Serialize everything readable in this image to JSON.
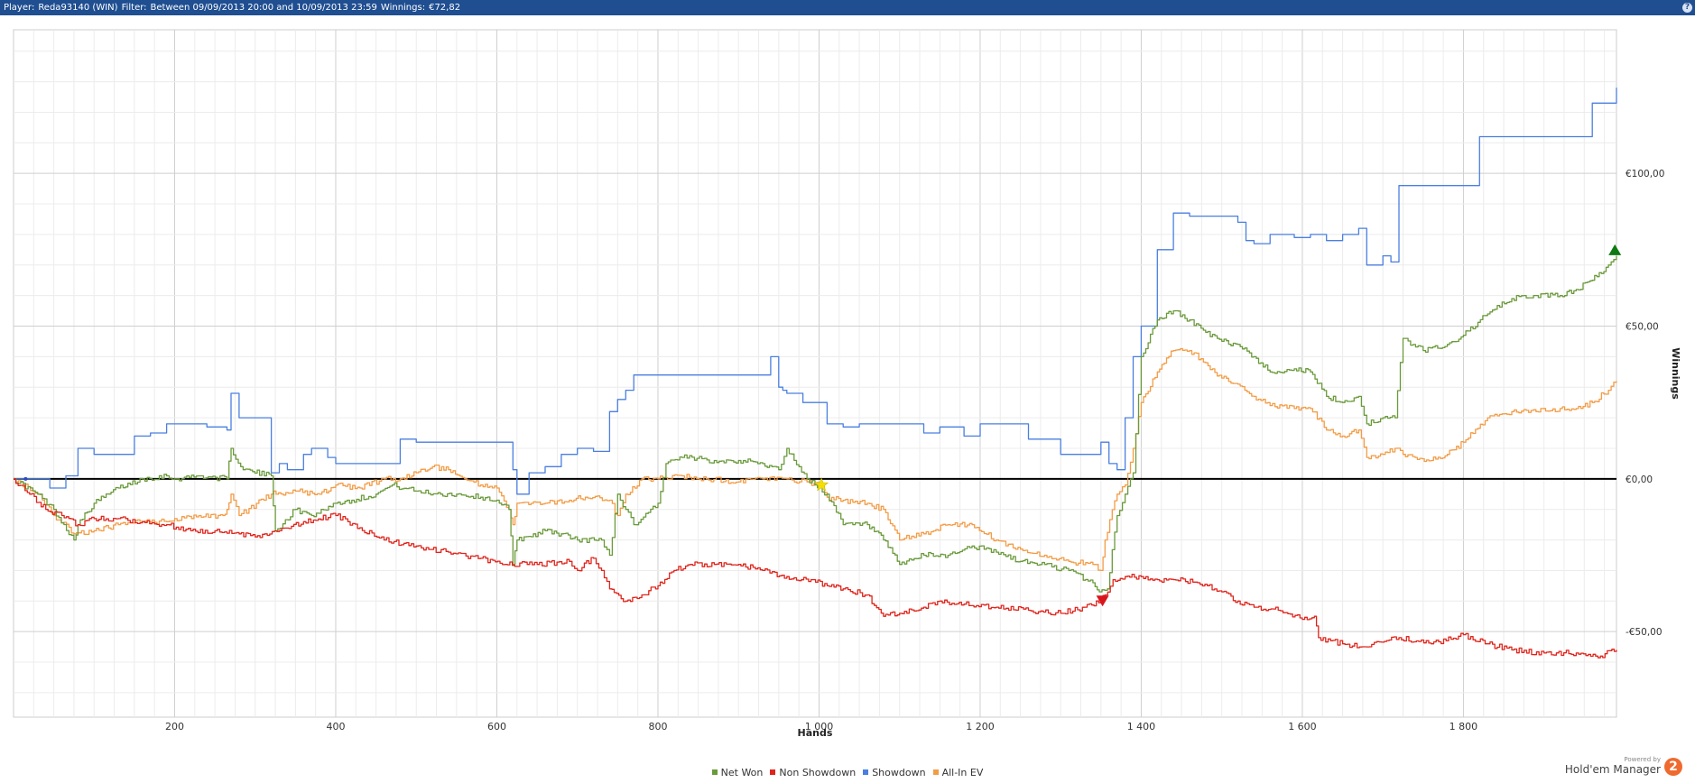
{
  "header": {
    "player_label": "Player:",
    "player_value": "Reda93140 (WIN)",
    "filter_label": "Filter:",
    "filter_value": "Between 09/09/2013 20:00 and 10/09/2013 23:59",
    "winnings_label": "Winnings:",
    "winnings_value": "€72,82",
    "help_label": "?"
  },
  "branding": {
    "powered_by": "Powered by",
    "name": "Hold'em Manager",
    "logo": "2"
  },
  "chart_data": {
    "type": "line",
    "xlabel": "Hands",
    "ylabel": "Winnings",
    "xlim": [
      0,
      1990
    ],
    "ylim": [
      -78,
      147
    ],
    "x_ticks": [
      200,
      400,
      600,
      800,
      1000,
      1200,
      1400,
      1600,
      1800
    ],
    "x_tick_labels": [
      "200",
      "400",
      "600",
      "800",
      "1 000",
      "1 200",
      "1 400",
      "1 600",
      "1 800"
    ],
    "y_ticks": [
      100,
      50,
      0,
      -50
    ],
    "y_tick_labels": [
      "€100,00",
      "€50,00",
      "€0,00",
      "-€50,00"
    ],
    "grid": true,
    "legend_position": "bottom",
    "series": [
      {
        "name": "Net Won",
        "color": "#6a9a3a",
        "x": [
          0,
          30,
          50,
          75,
          80,
          100,
          130,
          160,
          190,
          200,
          230,
          265,
          270,
          285,
          320,
          325,
          350,
          370,
          400,
          420,
          450,
          470,
          500,
          530,
          550,
          580,
          600,
          615,
          620,
          625,
          660,
          680,
          700,
          730,
          740,
          750,
          760,
          770,
          800,
          810,
          830,
          870,
          900,
          930,
          950,
          960,
          975,
          985,
          995,
          1010,
          1030,
          1060,
          1080,
          1100,
          1130,
          1160,
          1190,
          1220,
          1250,
          1280,
          1310,
          1340,
          1348,
          1358,
          1370,
          1380,
          1390,
          1400,
          1420,
          1440,
          1460,
          1480,
          1500,
          1520,
          1540,
          1560,
          1590,
          1610,
          1630,
          1650,
          1670,
          1680,
          1700,
          1715,
          1725,
          1750,
          1780,
          1800,
          1830,
          1860,
          1890,
          1920,
          1940,
          1960,
          1980,
          1990
        ],
        "y": [
          0,
          -5,
          -10,
          -20,
          -15,
          -8,
          -3,
          0,
          1,
          0,
          1,
          0,
          10,
          3,
          1,
          -17,
          -10,
          -12,
          -8,
          -7,
          -5,
          -2,
          -4,
          -5,
          -5,
          -6,
          -7,
          -10,
          -28,
          -20,
          -17,
          -18,
          -20,
          -20,
          -25,
          -5,
          -10,
          -15,
          -8,
          5,
          7,
          6,
          6,
          5,
          3,
          10,
          4,
          0,
          -2,
          -5,
          -15,
          -15,
          -20,
          -28,
          -25,
          -25,
          -22,
          -24,
          -27,
          -28,
          -30,
          -34,
          -37,
          -36,
          -12,
          -5,
          2,
          40,
          52,
          55,
          52,
          48,
          45,
          44,
          40,
          35,
          36,
          35,
          27,
          25,
          27,
          18,
          20,
          20,
          46,
          42,
          44,
          47,
          54,
          59,
          60,
          60,
          62,
          65,
          70,
          73
        ]
      },
      {
        "name": "Non Showdown",
        "color": "#e0241b",
        "x": [
          0,
          20,
          40,
          60,
          80,
          100,
          130,
          160,
          190,
          220,
          250,
          280,
          300,
          330,
          360,
          400,
          430,
          460,
          500,
          540,
          580,
          610,
          650,
          690,
          700,
          720,
          730,
          740,
          760,
          780,
          800,
          820,
          840,
          870,
          900,
          930,
          960,
          990,
          1010,
          1030,
          1060,
          1080,
          1100,
          1130,
          1150,
          1180,
          1220,
          1260,
          1300,
          1330,
          1350,
          1355,
          1365,
          1380,
          1400,
          1420,
          1440,
          1470,
          1500,
          1520,
          1540,
          1570,
          1600,
          1615,
          1620,
          1650,
          1680,
          1720,
          1760,
          1800,
          1830,
          1860,
          1900,
          1940,
          1970,
          1990
        ],
        "y": [
          0,
          -5,
          -10,
          -12,
          -15,
          -13,
          -13,
          -14,
          -15,
          -17,
          -17,
          -18,
          -19,
          -17,
          -14,
          -12,
          -16,
          -20,
          -22,
          -24,
          -26,
          -28,
          -28,
          -27,
          -30,
          -26,
          -30,
          -36,
          -40,
          -38,
          -35,
          -30,
          -28,
          -28,
          -28,
          -30,
          -32,
          -33,
          -35,
          -36,
          -38,
          -45,
          -44,
          -42,
          -40,
          -41,
          -42,
          -43,
          -44,
          -42,
          -40,
          -38,
          -33,
          -32,
          -32,
          -33,
          -33,
          -34,
          -37,
          -40,
          -42,
          -43,
          -46,
          -45,
          -52,
          -54,
          -55,
          -52,
          -54,
          -51,
          -54,
          -56,
          -57,
          -57,
          -58,
          -56
        ]
      },
      {
        "name": "Showdown",
        "color": "#4a7fe0",
        "x": [
          0,
          15,
          30,
          45,
          65,
          80,
          100,
          150,
          170,
          190,
          240,
          265,
          270,
          280,
          320,
          330,
          340,
          360,
          370,
          390,
          400,
          420,
          480,
          500,
          520,
          540,
          560,
          580,
          610,
          620,
          625,
          640,
          660,
          680,
          700,
          720,
          730,
          740,
          750,
          760,
          770,
          800,
          810,
          840,
          870,
          900,
          940,
          950,
          955,
          960,
          980,
          1010,
          1030,
          1050,
          1080,
          1100,
          1120,
          1130,
          1150,
          1160,
          1180,
          1200,
          1230,
          1260,
          1280,
          1300,
          1320,
          1340,
          1350,
          1360,
          1370,
          1380,
          1390,
          1400,
          1420,
          1440,
          1460,
          1490,
          1510,
          1520,
          1530,
          1540,
          1560,
          1590,
          1610,
          1630,
          1650,
          1670,
          1680,
          1700,
          1710,
          1720,
          1740,
          1760,
          1780,
          1800,
          1820,
          1860,
          1880,
          1900,
          1920,
          1940,
          1960,
          1980,
          1990
        ],
        "y": [
          0,
          0,
          0,
          -3,
          1,
          10,
          8,
          14,
          15,
          18,
          17,
          16,
          28,
          20,
          2,
          5,
          3,
          8,
          10,
          7,
          5,
          5,
          13,
          12,
          12,
          12,
          12,
          12,
          12,
          3,
          -5,
          2,
          4,
          8,
          10,
          9,
          9,
          22,
          26,
          29,
          34,
          34,
          34,
          34,
          34,
          34,
          40,
          30,
          29,
          28,
          25,
          18,
          17,
          18,
          18,
          18,
          18,
          15,
          17,
          17,
          14,
          18,
          18,
          13,
          13,
          8,
          8,
          8,
          12,
          5,
          3,
          20,
          40,
          50,
          75,
          87,
          86,
          86,
          86,
          84,
          78,
          77,
          80,
          79,
          80,
          78,
          80,
          82,
          70,
          73,
          71,
          96,
          96,
          96,
          96,
          96,
          112,
          112,
          112,
          112,
          112,
          112,
          123,
          123,
          128
        ]
      },
      {
        "name": "All-In EV",
        "color": "#f39c45",
        "x": [
          0,
          30,
          50,
          75,
          100,
          130,
          160,
          190,
          200,
          230,
          260,
          265,
          270,
          280,
          320,
          350,
          380,
          400,
          430,
          460,
          480,
          500,
          520,
          540,
          560,
          580,
          600,
          615,
          620,
          625,
          660,
          690,
          710,
          740,
          750,
          760,
          780,
          800,
          830,
          860,
          900,
          930,
          960,
          985,
          1000,
          1010,
          1030,
          1060,
          1080,
          1100,
          1130,
          1160,
          1190,
          1220,
          1250,
          1280,
          1310,
          1340,
          1350,
          1355,
          1370,
          1380,
          1390,
          1400,
          1420,
          1440,
          1460,
          1480,
          1500,
          1520,
          1540,
          1560,
          1590,
          1610,
          1630,
          1650,
          1670,
          1680,
          1700,
          1715,
          1725,
          1740,
          1760,
          1780,
          1800,
          1830,
          1860,
          1890,
          1920,
          1940,
          1960,
          1980,
          1990
        ],
        "y": [
          0,
          -5,
          -12,
          -18,
          -17,
          -15,
          -14,
          -14,
          -13,
          -12,
          -12,
          -10,
          -5,
          -12,
          -5,
          -4,
          -5,
          -2,
          -3,
          0,
          0,
          2,
          4,
          3,
          0,
          -2,
          -3,
          -10,
          -15,
          -8,
          -8,
          -7,
          -6,
          -7,
          -12,
          -5,
          0,
          0,
          1,
          0,
          -1,
          0,
          0,
          -1,
          -2,
          -6,
          -7,
          -8,
          -10,
          -20,
          -18,
          -15,
          -15,
          -20,
          -23,
          -25,
          -27,
          -28,
          -30,
          -20,
          -5,
          -2,
          10,
          25,
          35,
          42,
          42,
          38,
          33,
          31,
          27,
          24,
          23,
          23,
          16,
          14,
          16,
          7,
          8,
          10,
          8,
          7,
          6,
          8,
          12,
          20,
          22,
          22,
          23,
          23,
          25,
          29,
          32
        ]
      }
    ],
    "markers": [
      {
        "symbol": "star",
        "color": "#f4e000",
        "x": 1003,
        "y": -2
      },
      {
        "symbol": "triangle-down",
        "color": "#d8151c",
        "x": 1352,
        "y": -40
      },
      {
        "symbol": "triangle-up",
        "color": "#0f7a12",
        "x": 1988,
        "y": 75
      }
    ]
  }
}
